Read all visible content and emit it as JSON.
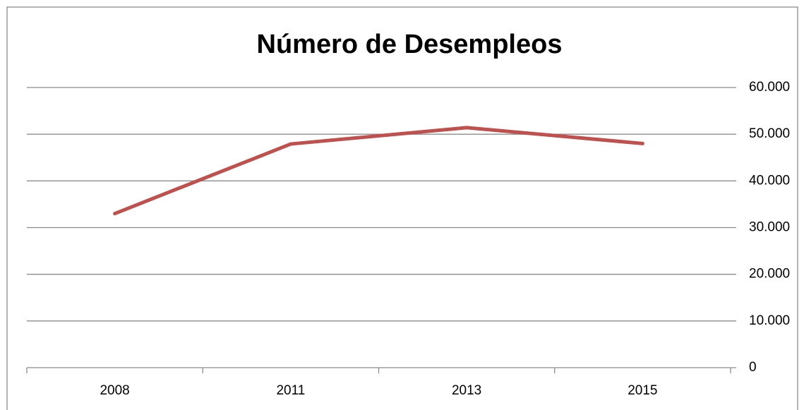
{
  "chart_data": {
    "type": "line",
    "title": "Número de Desempleos",
    "categories": [
      "2008",
      "2011",
      "2013",
      "2015"
    ],
    "series": [
      {
        "name": "Desempleos",
        "color": "#c0504d",
        "values": [
          33000,
          47900,
          51400,
          48000
        ]
      }
    ],
    "ylim": [
      0,
      60000
    ],
    "yticks": [
      0,
      {
        "value": 10000,
        "label": "10.000"
      },
      {
        "value": 20000,
        "label": "20.000"
      },
      {
        "value": 30000,
        "label": "30.000"
      },
      {
        "value": 40000,
        "label": "40.000"
      },
      {
        "value": 50000,
        "label": "50.000"
      },
      {
        "value": 60000,
        "label": "60.000"
      }
    ],
    "grid": true,
    "y_axis_side": "right"
  }
}
